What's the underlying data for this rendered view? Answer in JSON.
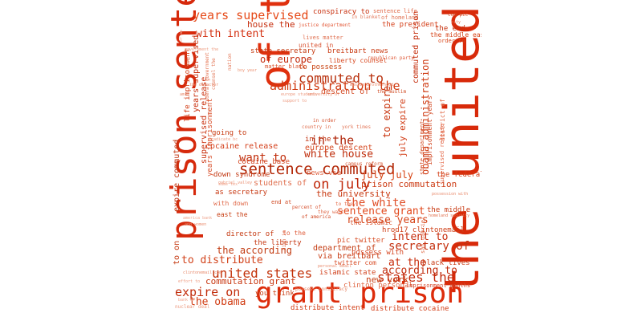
{
  "words": [
    {
      "text": "of the",
      "color": "#e0300e"
    },
    {
      "text": "the united",
      "color": "#d82a0a"
    },
    {
      "text": "prison sentence",
      "color": "#d6290b"
    },
    {
      "text": "grant prison",
      "color": "#dd2c0b"
    },
    {
      "text": "years supervised",
      "color": "#e64a19"
    },
    {
      "text": "with intent",
      "color": "#d32f0f"
    },
    {
      "text": "house the",
      "color": "#c62d0d"
    },
    {
      "text": "of europe",
      "color": "#c42a0c"
    },
    {
      "text": "commuted to",
      "color": "#b8300d"
    },
    {
      "text": "administration the",
      "color": "#cf3a10"
    },
    {
      "text": "sentence commuted",
      "color": "#b32a0a"
    },
    {
      "text": "in the",
      "color": "#b0260a"
    },
    {
      "text": "white house",
      "color": "#bf2d0b"
    },
    {
      "text": "want to",
      "color": "#c2300e"
    },
    {
      "text": "on july",
      "color": "#c0280a"
    },
    {
      "text": "july july",
      "color": "#d6400f"
    },
    {
      "text": "the white",
      "color": "#e0502a"
    },
    {
      "text": "sentence grant",
      "color": "#e24a1e"
    },
    {
      "text": "release years",
      "color": "#d6451a"
    },
    {
      "text": "intent to",
      "color": "#c62c0c"
    },
    {
      "text": "secretary of",
      "color": "#c4300e"
    },
    {
      "text": "at the",
      "color": "#c72b0a"
    },
    {
      "text": "according to",
      "color": "#c12b0c"
    },
    {
      "text": "states the",
      "color": "#c42b0d"
    },
    {
      "text": "united states",
      "color": "#c23108"
    },
    {
      "text": "expire on",
      "color": "#c22d0c"
    },
    {
      "text": "the obama",
      "color": "#d13c12"
    },
    {
      "text": "to distribute",
      "color": "#d2421a"
    },
    {
      "text": "the according",
      "color": "#c23a10"
    },
    {
      "text": "commutation grant",
      "color": "#c83710"
    },
    {
      "text": "new york",
      "color": "#c73d12"
    },
    {
      "text": "conspiracy to",
      "color": "#c8300e"
    },
    {
      "text": "sentence life",
      "color": "#e06a4a"
    },
    {
      "text": "of homeland",
      "color": "#e27a5c"
    },
    {
      "text": "the president",
      "color": "#d4401a"
    },
    {
      "text": "in blanket",
      "color": "#e37d60"
    },
    {
      "text": "justice department",
      "color": "#e46040"
    },
    {
      "text": "lives matter",
      "color": "#e07050"
    },
    {
      "text": "united in",
      "color": "#d95535"
    },
    {
      "text": "state secretary",
      "color": "#c5390f"
    },
    {
      "text": "breitbart news",
      "color": "#c93a12"
    },
    {
      "text": "to possess",
      "color": "#c8400f"
    },
    {
      "text": "liberty counsel",
      "color": "#d84a22"
    },
    {
      "text": "republican party",
      "color": "#e06040"
    },
    {
      "text": "matter black",
      "color": "#d9502a"
    },
    {
      "text": "the end",
      "color": "#c6300d"
    },
    {
      "text": "the middle east",
      "color": "#d6451a"
    },
    {
      "text": "order to",
      "color": "#d94c22"
    },
    {
      "text": "com pic",
      "color": "#d24b25"
    },
    {
      "text": "city",
      "color": "#e78266"
    },
    {
      "text": "commuted prison",
      "color": "#c42c0a"
    },
    {
      "text": "obama administration",
      "color": "#cf3a12"
    },
    {
      "text": "july expire",
      "color": "#d2401a"
    },
    {
      "text": "to expire",
      "color": "#c8340e"
    },
    {
      "text": "state department",
      "color": "#d44b22"
    },
    {
      "text": "district of",
      "color": "#e06a48"
    },
    {
      "text": "imprisonment years",
      "color": "#d04520"
    },
    {
      "text": "supervised release",
      "color": "#e46a4a"
    },
    {
      "text": "years supervised",
      "color": "#c8300e"
    },
    {
      "text": "supervised release",
      "color": "#c8300e"
    },
    {
      "text": "life imprisonment",
      "color": "#d3401a"
    },
    {
      "text": "years imprisonment",
      "color": "#d9502c"
    },
    {
      "text": "expire commuted",
      "color": "#c23510"
    },
    {
      "text": "to on",
      "color": "#c53a12"
    },
    {
      "text": "europe descent",
      "color": "#d64a22"
    },
    {
      "text": "descent of",
      "color": "#d44a24"
    },
    {
      "text": "cocaine release",
      "color": "#d4401c"
    },
    {
      "text": "cocaine base",
      "color": "#d44620"
    },
    {
      "text": "going to",
      "color": "#c83d14"
    },
    {
      "text": "down syndrome",
      "color": "#c23812"
    },
    {
      "text": "news via",
      "color": "#e06848"
    },
    {
      "text": "prison commutation",
      "color": "#cc3a12"
    },
    {
      "text": "the university",
      "color": "#c8380f"
    },
    {
      "text": "as secretary",
      "color": "#c73812"
    },
    {
      "text": "students of",
      "color": "#e07050"
    },
    {
      "text": "hrod17 clintonemail",
      "color": "#cf3d14"
    },
    {
      "text": "department of",
      "color": "#c33a10"
    },
    {
      "text": "via breitbart",
      "color": "#c83b12"
    },
    {
      "text": "possess with",
      "color": "#d64824"
    },
    {
      "text": "pic twitter",
      "color": "#d85028"
    },
    {
      "text": "islamic state",
      "color": "#d24622"
    },
    {
      "text": "twitter com",
      "color": "#d84c26"
    },
    {
      "text": "clinton personal",
      "color": "#e06a48"
    },
    {
      "text": "distribute intent",
      "color": "#d23c14"
    },
    {
      "text": "distribute cocaine",
      "color": "#d33d16"
    },
    {
      "text": "imprisonment months",
      "color": "#d5482a"
    },
    {
      "text": "you think",
      "color": "#c93d14"
    },
    {
      "text": "the liberty",
      "color": "#c53610"
    },
    {
      "text": "director of",
      "color": "#c53a12"
    },
    {
      "text": "in the",
      "color": "#c02f0c"
    },
    {
      "text": "the middle",
      "color": "#c8370f"
    },
    {
      "text": "the federal",
      "color": "#d23d14"
    },
    {
      "text": "black lives",
      "color": "#c83a14"
    },
    {
      "text": "the islamic",
      "color": "#d54a24"
    },
    {
      "text": "the muslim",
      "color": "#cf4820"
    },
    {
      "text": "with down",
      "color": "#e06848"
    },
    {
      "text": "east the",
      "color": "#c84016"
    },
    {
      "text": "end at",
      "color": "#d04a24"
    },
    {
      "text": "of america",
      "color": "#d24c28"
    },
    {
      "text": "they want",
      "color": "#e06a4a"
    },
    {
      "text": "percent of",
      "color": "#d85432"
    },
    {
      "text": "campus reform",
      "color": "#d95c38"
    },
    {
      "text": "in order",
      "color": "#d65432"
    },
    {
      "text": "country in",
      "color": "#e07050"
    },
    {
      "text": "york times",
      "color": "#e37a5c"
    },
    {
      "text": "muslim brotherhood",
      "color": "#e88a6c"
    },
    {
      "text": "university of",
      "color": "#e98e70"
    },
    {
      "text": "europe students",
      "color": "#ec9a80"
    },
    {
      "text": "support to",
      "color": "#ec9a80"
    },
    {
      "text": "government the",
      "color": "#ee9e84"
    },
    {
      "text": "of as",
      "color": "#f0a892"
    },
    {
      "text": "federal government",
      "color": "#e4704e"
    },
    {
      "text": "counsel the",
      "color": "#e27656"
    },
    {
      "text": "nation",
      "color": "#e47a5a"
    },
    {
      "text": "boy year",
      "color": "#ec9678"
    },
    {
      "text": "the director",
      "color": "#e88a6c"
    },
    {
      "text": "am",
      "color": "#e88a6c"
    },
    {
      "text": "gabriel valley",
      "color": "#ea9276"
    },
    {
      "text": "san gabriel",
      "color": "#e27452"
    },
    {
      "text": "homeland security",
      "color": "#e27452"
    },
    {
      "text": "possession with",
      "color": "#e88a6c"
    },
    {
      "text": "to the",
      "color": "#e06040"
    },
    {
      "text": "to they",
      "color": "#e46c4a"
    },
    {
      "text": "eradicate bc",
      "color": "#ee9c82"
    },
    {
      "text": "same tex",
      "color": "#f0a48c"
    },
    {
      "text": "america bank",
      "color": "#f0a892"
    },
    {
      "text": "and women",
      "color": "#ea9074"
    },
    {
      "text": "nuclear deal",
      "color": "#ec987e"
    },
    {
      "text": "effort to",
      "color": "#ee9c82"
    },
    {
      "text": "clintonemail com",
      "color": "#e88a6c"
    },
    {
      "text": "bank of",
      "color": "#f0a48c"
    },
    {
      "text": "possess conspiracy",
      "color": "#e88a6c"
    },
    {
      "text": "sign in",
      "color": "#e27452"
    },
    {
      "text": "personal email",
      "color": "#e88a6c"
    }
  ]
}
